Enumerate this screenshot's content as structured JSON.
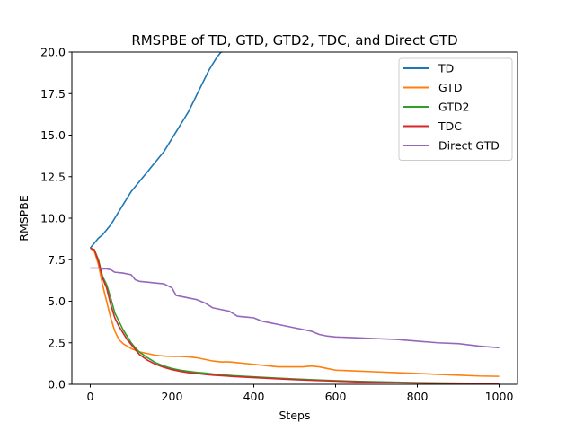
{
  "chart_data": {
    "type": "line",
    "title": "RMSPBE of TD, GTD, GTD2, TDC, and Direct GTD",
    "xlabel": "Steps",
    "ylabel": "RMSPBE",
    "xlim": [
      -45,
      1045
    ],
    "ylim": [
      0,
      20
    ],
    "xticks": [
      0,
      200,
      400,
      600,
      800,
      1000
    ],
    "xtick_labels": [
      "0",
      "200",
      "400",
      "600",
      "800",
      "1000"
    ],
    "yticks": [
      0.0,
      2.5,
      5.0,
      7.5,
      10.0,
      12.5,
      15.0,
      17.5,
      20.0
    ],
    "ytick_labels": [
      "0.0",
      "2.5",
      "5.0",
      "7.5",
      "10.0",
      "12.5",
      "15.0",
      "17.5",
      "20.0"
    ],
    "grid": false,
    "legend_position": "top-right",
    "series": [
      {
        "name": "TD",
        "color": "#1f77b4",
        "x": [
          0,
          10,
          20,
          30,
          40,
          50,
          60,
          70,
          80,
          90,
          100,
          110,
          120,
          130,
          140,
          150,
          160,
          170,
          180,
          190,
          200,
          210,
          220,
          230,
          240,
          250,
          260,
          270,
          280,
          290,
          300,
          310,
          320,
          323
        ],
        "y": [
          8.2,
          8.5,
          8.8,
          9.0,
          9.3,
          9.6,
          10.0,
          10.4,
          10.8,
          11.2,
          11.6,
          11.9,
          12.2,
          12.5,
          12.8,
          13.1,
          13.4,
          13.7,
          14.0,
          14.4,
          14.8,
          15.2,
          15.6,
          16.0,
          16.4,
          16.9,
          17.4,
          17.9,
          18.4,
          18.9,
          19.3,
          19.7,
          20.0,
          20.0
        ]
      },
      {
        "name": "GTD",
        "color": "#ff7f0e",
        "x": [
          0,
          10,
          20,
          30,
          40,
          50,
          60,
          70,
          80,
          90,
          100,
          120,
          140,
          160,
          180,
          200,
          220,
          240,
          260,
          280,
          300,
          320,
          340,
          360,
          380,
          400,
          420,
          440,
          460,
          480,
          500,
          520,
          540,
          560,
          580,
          600,
          650,
          700,
          750,
          800,
          850,
          900,
          950,
          1000
        ],
        "y": [
          8.2,
          8.0,
          7.2,
          6.0,
          5.0,
          4.0,
          3.2,
          2.7,
          2.45,
          2.3,
          2.15,
          1.95,
          1.85,
          1.75,
          1.7,
          1.68,
          1.68,
          1.65,
          1.6,
          1.5,
          1.4,
          1.35,
          1.35,
          1.3,
          1.25,
          1.2,
          1.15,
          1.1,
          1.05,
          1.05,
          1.05,
          1.05,
          1.1,
          1.05,
          0.95,
          0.85,
          0.8,
          0.75,
          0.7,
          0.65,
          0.6,
          0.55,
          0.5,
          0.48
        ]
      },
      {
        "name": "GTD2",
        "color": "#2ca02c",
        "x": [
          0,
          10,
          20,
          30,
          40,
          50,
          60,
          70,
          80,
          90,
          100,
          110,
          120,
          140,
          160,
          180,
          200,
          220,
          240,
          260,
          280,
          300,
          350,
          400,
          450,
          500,
          550,
          600,
          650,
          700,
          800,
          900,
          1000
        ],
        "y": [
          8.2,
          8.1,
          7.5,
          6.5,
          6.0,
          5.2,
          4.3,
          3.8,
          3.3,
          2.9,
          2.5,
          2.2,
          1.95,
          1.6,
          1.3,
          1.1,
          0.95,
          0.85,
          0.78,
          0.72,
          0.68,
          0.62,
          0.52,
          0.45,
          0.38,
          0.32,
          0.27,
          0.22,
          0.18,
          0.15,
          0.1,
          0.07,
          0.05
        ]
      },
      {
        "name": "TDC",
        "color": "#d62728",
        "x": [
          0,
          10,
          20,
          30,
          40,
          50,
          60,
          70,
          80,
          90,
          100,
          110,
          120,
          140,
          160,
          180,
          200,
          220,
          240,
          260,
          280,
          300,
          350,
          400,
          450,
          500,
          550,
          600,
          650,
          700,
          800,
          900,
          1000
        ],
        "y": [
          8.2,
          8.1,
          7.4,
          6.4,
          5.8,
          4.8,
          4.0,
          3.5,
          3.1,
          2.7,
          2.4,
          2.1,
          1.8,
          1.45,
          1.2,
          1.02,
          0.88,
          0.78,
          0.7,
          0.65,
          0.6,
          0.55,
          0.47,
          0.4,
          0.34,
          0.28,
          0.23,
          0.19,
          0.15,
          0.12,
          0.08,
          0.05,
          0.03
        ]
      },
      {
        "name": "Direct GTD",
        "color": "#9467bd",
        "x": [
          0,
          10,
          20,
          30,
          40,
          50,
          60,
          80,
          100,
          110,
          120,
          140,
          160,
          180,
          200,
          210,
          220,
          240,
          260,
          280,
          300,
          320,
          340,
          360,
          380,
          400,
          420,
          440,
          460,
          480,
          500,
          520,
          540,
          560,
          580,
          600,
          650,
          700,
          750,
          800,
          850,
          900,
          950,
          1000
        ],
        "y": [
          7.0,
          7.0,
          7.0,
          6.95,
          6.95,
          6.9,
          6.75,
          6.7,
          6.6,
          6.3,
          6.2,
          6.15,
          6.1,
          6.05,
          5.8,
          5.35,
          5.3,
          5.2,
          5.1,
          4.9,
          4.6,
          4.5,
          4.4,
          4.1,
          4.05,
          4.0,
          3.8,
          3.7,
          3.6,
          3.5,
          3.4,
          3.3,
          3.2,
          3.0,
          2.9,
          2.85,
          2.8,
          2.75,
          2.7,
          2.6,
          2.5,
          2.45,
          2.3,
          2.2
        ]
      }
    ]
  }
}
